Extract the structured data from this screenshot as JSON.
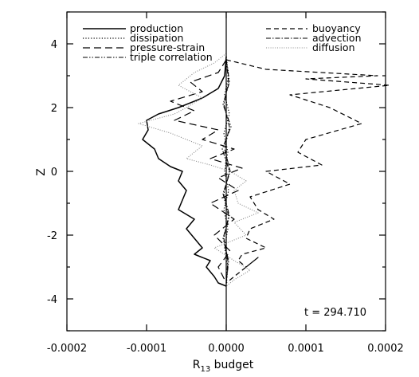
{
  "chart_data": {
    "type": "line",
    "xlabel_main": "R",
    "xlabel_sub": "13",
    "xlabel_rest": " budget",
    "ylabel": "Z",
    "xlim": [
      -0.0002,
      0.0002
    ],
    "ylim": [
      -5,
      5
    ],
    "xticks": [
      -0.0002,
      -0.0001,
      0.0,
      0.0001,
      0.0002
    ],
    "xtick_labels": [
      "-0.0002",
      "-0.0001",
      "0.0000",
      "0.0001",
      "0.0002"
    ],
    "yticks": [
      -4,
      -2,
      0,
      2,
      4
    ],
    "ytick_labels": [
      "-4",
      "-2",
      "0",
      "2",
      "4"
    ],
    "annotation": "t = 294.710",
    "grid": false,
    "legend_left": [
      "production",
      "dissipation",
      "pressure-strain",
      "triple correlation"
    ],
    "legend_right": [
      "buoyancy",
      "advection",
      "diffusion"
    ],
    "series": [
      {
        "name": "production",
        "style": "solid",
        "x": [
          0,
          -2e-06,
          -1e-05,
          -3e-05,
          -6e-05,
          -8.5e-05,
          -0.0001,
          -9.8e-05,
          -0.000105,
          -9e-05,
          -8.5e-05,
          -7e-05,
          -5.5e-05,
          -6e-05,
          -5e-05,
          -5.5e-05,
          -6e-05,
          -4e-05,
          -5e-05,
          -4e-05,
          -3e-05,
          -4e-05,
          -2e-05,
          -2.5e-05,
          -1.5e-05,
          -1e-05,
          0
        ],
        "y": [
          3.6,
          3.0,
          2.6,
          2.3,
          2.0,
          1.8,
          1.6,
          1.3,
          1.0,
          0.7,
          0.4,
          0.15,
          0.0,
          -0.3,
          -0.6,
          -0.9,
          -1.2,
          -1.5,
          -1.8,
          -2.1,
          -2.4,
          -2.6,
          -2.8,
          -3.0,
          -3.3,
          -3.5,
          -3.6
        ]
      },
      {
        "name": "dissipation",
        "style": "dotted",
        "x": [
          0,
          3e-06,
          -2e-06,
          4e-06,
          -3e-06,
          2e-06,
          -2e-06,
          3e-06,
          -3e-06,
          2e-06,
          -2e-06,
          2e-06,
          0
        ],
        "y": [
          3.6,
          3.0,
          2.4,
          1.8,
          1.2,
          0.6,
          0.0,
          -0.6,
          -1.2,
          -1.8,
          -2.4,
          -3.0,
          -3.6
        ]
      },
      {
        "name": "pressure-strain",
        "style": "longdash",
        "x": [
          0,
          -1e-05,
          -4.5e-05,
          -3e-05,
          -7e-05,
          -4e-05,
          -6.5e-05,
          -1e-05,
          -3e-05,
          1e-05,
          -2e-05,
          2e-05,
          -1e-05,
          1.5e-05,
          -2e-05,
          1e-05,
          -1.5e-05,
          5e-06,
          -1e-05,
          0
        ],
        "y": [
          3.5,
          3.1,
          2.8,
          2.5,
          2.2,
          1.9,
          1.6,
          1.3,
          1.0,
          0.7,
          0.4,
          0.1,
          -0.2,
          -0.6,
          -1.0,
          -1.5,
          -2.0,
          -2.5,
          -3.0,
          -3.5
        ]
      },
      {
        "name": "triple correlation",
        "style": "dashdotdot",
        "x": [
          0,
          4e-06,
          -4e-06,
          6e-06,
          -5e-06,
          4e-06,
          -3e-06,
          4e-06,
          -4e-06,
          3e-06,
          0
        ],
        "y": [
          3.5,
          2.8,
          2.1,
          1.4,
          0.7,
          0.0,
          -0.7,
          -1.4,
          -2.1,
          -2.8,
          -3.5
        ]
      },
      {
        "name": "buoyancy",
        "style": "dashed",
        "x": [
          0,
          5e-05,
          0.00019,
          0.0001,
          0.000205,
          8e-05,
          0.00013,
          0.00017,
          0.0001,
          9e-05,
          0.00012,
          5e-05,
          8e-05,
          3e-05,
          4e-05,
          6e-05,
          3e-05,
          2.5e-05,
          5e-05,
          2e-05,
          1.5e-05,
          2.5e-05,
          4e-05,
          1e-05,
          0
        ],
        "y": [
          3.5,
          3.2,
          3.0,
          2.9,
          2.7,
          2.4,
          2.0,
          1.5,
          1.0,
          0.6,
          0.2,
          0.0,
          -0.4,
          -0.8,
          -1.2,
          -1.5,
          -1.8,
          -2.1,
          -2.4,
          -2.6,
          -2.8,
          -3.0,
          -2.7,
          -3.3,
          -3.5
        ]
      },
      {
        "name": "advection",
        "style": "dashdot",
        "x": [
          0,
          3e-06,
          -3e-06,
          4e-06,
          -2e-06,
          5e-06,
          -4e-06,
          3e-06,
          -3e-06,
          2e-06,
          0
        ],
        "y": [
          3.5,
          2.8,
          2.1,
          1.4,
          0.7,
          0.0,
          -0.7,
          -1.4,
          -2.1,
          -2.8,
          -3.5
        ]
      },
      {
        "name": "diffusion",
        "style": "finedot",
        "x": [
          0,
          -1.5e-05,
          -4e-05,
          -6e-05,
          -3e-05,
          -5e-05,
          -6.5e-05,
          -0.00011,
          -7e-05,
          -3e-05,
          -5e-05,
          -2e-05,
          5e-06,
          2.5e-05,
          1e-05,
          1.5e-05,
          4e-05,
          1e-05,
          2.5e-05,
          -1.5e-05,
          1e-05,
          3e-05,
          1e-05,
          0
        ],
        "y": [
          3.7,
          3.4,
          3.1,
          2.7,
          2.3,
          2.0,
          1.8,
          1.5,
          1.2,
          0.8,
          0.4,
          0.2,
          0.0,
          -0.3,
          -0.6,
          -1.0,
          -1.3,
          -1.6,
          -2.0,
          -2.4,
          -2.8,
          -3.1,
          -3.4,
          -3.6
        ]
      }
    ]
  }
}
